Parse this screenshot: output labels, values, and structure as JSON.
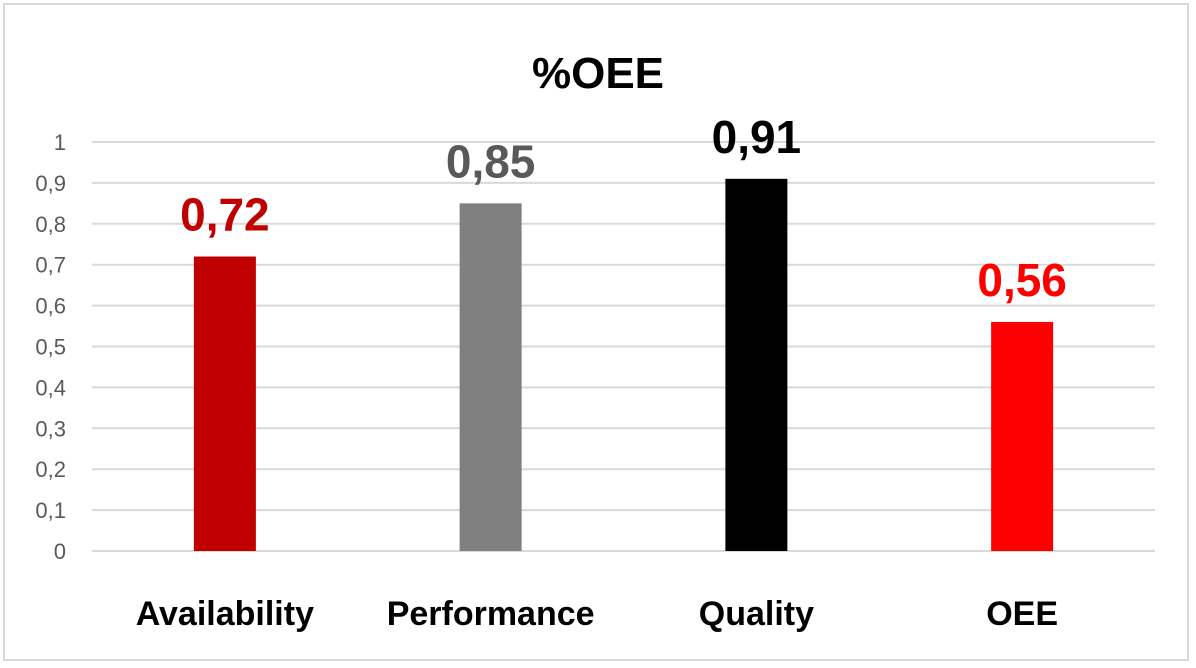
{
  "chart_data": {
    "type": "bar",
    "title": "%OEE",
    "categories": [
      "Availability",
      "Performance",
      "Quality",
      "OEE"
    ],
    "values": [
      0.72,
      0.85,
      0.91,
      0.56
    ],
    "data_labels": [
      "0,72",
      "0,85",
      "0,91",
      "0,56"
    ],
    "bar_colors": [
      "#c00000",
      "#808080",
      "#000000",
      "#ff0000"
    ],
    "label_colors": [
      "#c00000",
      "#595959",
      "#000000",
      "#ff0000"
    ],
    "ylim": [
      0,
      1
    ],
    "yticks": [
      0,
      0.1,
      0.2,
      0.3,
      0.4,
      0.5,
      0.6,
      0.7,
      0.8,
      0.9,
      1
    ],
    "ytick_labels": [
      "0",
      "0,1",
      "0,2",
      "0,3",
      "0,4",
      "0,5",
      "0,6",
      "0,7",
      "0,8",
      "0,9",
      "1"
    ],
    "grid": true,
    "legend": "none",
    "xlabel": "",
    "ylabel": ""
  }
}
